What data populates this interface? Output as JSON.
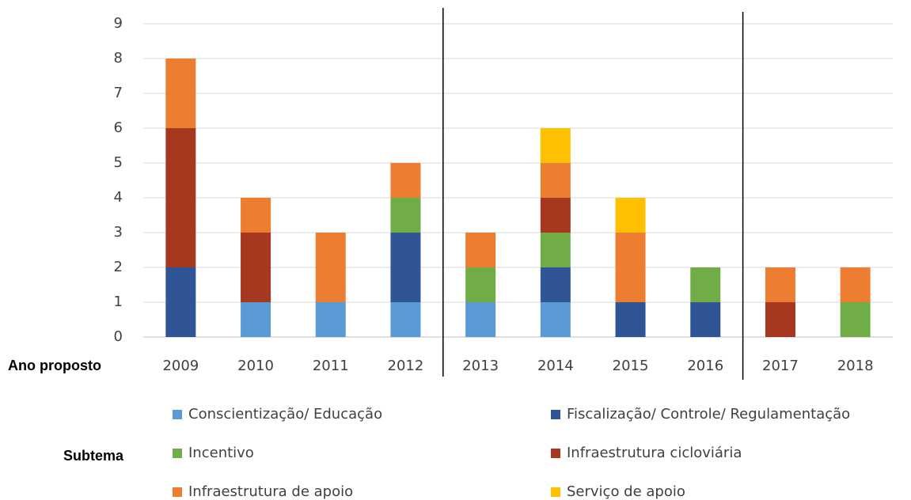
{
  "chart_data": {
    "type": "bar",
    "stacked": true,
    "x_label": "Ano proposto",
    "legend_title": "Subtema",
    "categories": [
      "2009",
      "2010",
      "2011",
      "2012",
      "2013",
      "2014",
      "2015",
      "2016",
      "2017",
      "2018"
    ],
    "series": [
      {
        "name": "Conscientização/ Educação",
        "color": "#5b9bd5",
        "values": [
          0,
          1,
          1,
          1,
          1,
          1,
          0,
          0,
          0,
          0
        ]
      },
      {
        "name": "Fiscalização/ Controle/ Regulamentação",
        "color": "#2f5597",
        "values": [
          2,
          0,
          0,
          2,
          0,
          1,
          1,
          1,
          0,
          0
        ]
      },
      {
        "name": "Incentivo",
        "color": "#70ad47",
        "values": [
          0,
          0,
          0,
          1,
          1,
          1,
          0,
          1,
          0,
          1
        ]
      },
      {
        "name": "Infraestrutura cicloviária",
        "color": "#a5381f",
        "values": [
          4,
          2,
          0,
          0,
          0,
          1,
          0,
          0,
          1,
          0
        ]
      },
      {
        "name": "Infraestrutura de apoio",
        "color": "#ed7d31",
        "values": [
          2,
          1,
          2,
          1,
          1,
          1,
          2,
          0,
          1,
          1
        ]
      },
      {
        "name": "Serviço de apoio",
        "color": "#ffc000",
        "values": [
          0,
          0,
          0,
          0,
          0,
          1,
          1,
          0,
          0,
          0
        ]
      }
    ],
    "ylim": [
      0,
      9
    ],
    "yticks": [
      0,
      1,
      2,
      3,
      4,
      5,
      6,
      7,
      8,
      9
    ],
    "grid": true
  }
}
